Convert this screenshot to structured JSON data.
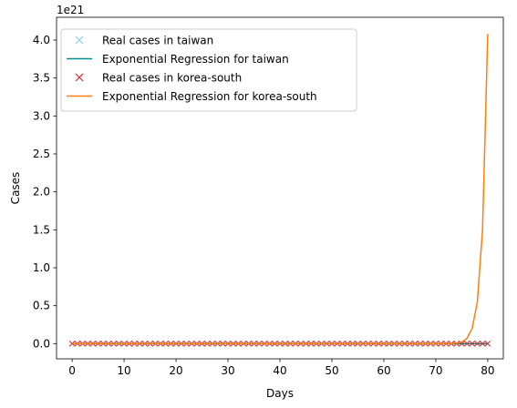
{
  "chart_data": {
    "type": "line",
    "title": "",
    "xlabel": "Days",
    "ylabel": "Cases",
    "y_offset_label": "1e21",
    "xlim": [
      -3.0,
      83.0
    ],
    "ylim": [
      -0.2,
      4.3
    ],
    "y_scale_exponent": 21,
    "x_ticks": [
      0,
      10,
      20,
      30,
      40,
      50,
      60,
      70,
      80
    ],
    "x_tick_labels": [
      "0",
      "10",
      "20",
      "30",
      "40",
      "50",
      "60",
      "70",
      "80"
    ],
    "y_ticks": [
      0.0,
      0.5,
      1.0,
      1.5,
      2.0,
      2.5,
      3.0,
      3.5,
      4.0
    ],
    "y_tick_labels": [
      "0.0",
      "0.5",
      "1.0",
      "1.5",
      "2.0",
      "2.5",
      "3.0",
      "3.5",
      "4.0"
    ],
    "grid": false,
    "legend_position": "top-left",
    "series": [
      {
        "name": "Real cases in taiwan",
        "kind": "marker",
        "marker": "x",
        "color": "#87ceeb",
        "x_start": 0,
        "x_end": 80,
        "y_constant": 0.0
      },
      {
        "name": "Exponential Regression for taiwan",
        "kind": "line",
        "color": "#008b8b",
        "x": [
          0,
          80
        ],
        "y": [
          0.0,
          0.0
        ]
      },
      {
        "name": "Real cases in korea-south",
        "kind": "marker",
        "marker": "x",
        "color": "#d62728",
        "x_start": 0,
        "x_end": 80,
        "y_constant": 0.0
      },
      {
        "name": "Exponential Regression for korea-south",
        "kind": "line",
        "color": "#ff7f0e",
        "x": [
          0,
          70,
          73,
          74,
          75,
          76,
          77,
          78,
          79,
          80
        ],
        "y": [
          0.0,
          0.0,
          0.002,
          0.006,
          0.02,
          0.07,
          0.2,
          0.55,
          1.5,
          4.08
        ]
      }
    ]
  }
}
